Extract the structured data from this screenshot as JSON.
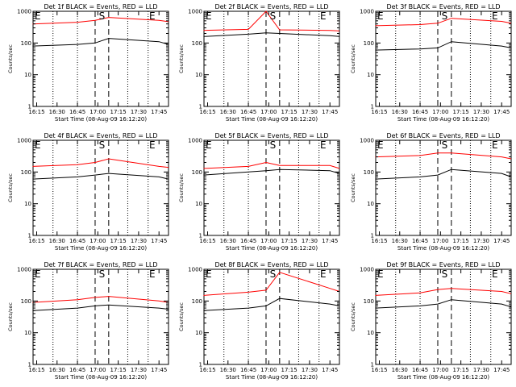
{
  "chart_data": {
    "type": "line",
    "grid": false,
    "legend": "none",
    "colors": {
      "events": "#000000",
      "lld": "#ff0000"
    },
    "xticks": [
      "16:15",
      "16:30",
      "16:45",
      "17:00",
      "17:15",
      "17:30",
      "17:45"
    ],
    "xrange": [
      "16:12:20",
      "17:52:00"
    ],
    "yscale": "log",
    "ylim": [
      1,
      1000
    ],
    "yticks": [
      "1",
      "10",
      "100",
      "1000"
    ],
    "markers": {
      "left": "E",
      "mid": "S",
      "right": "E"
    },
    "marker_times": {
      "left": "16:12:20",
      "mid": "17:03",
      "right": "17:40"
    },
    "dotted_times": [
      "16:27",
      "16:45",
      "17:22",
      "17:37"
    ],
    "dashed_times": [
      "16:58",
      "17:08"
    ],
    "panels": [
      {
        "title": "Det 1f BLACK = Events, RED = LLD",
        "ylabel": "Counts/sec",
        "xlabel": "Start Time (08-Aug-09 16:12:20)",
        "series": [
          {
            "key": "events",
            "x": [
              "16:12",
              "16:45",
              "16:58",
              "17:08",
              "17:45",
              "17:52"
            ],
            "y": [
              80,
              90,
              100,
              140,
              110,
              90
            ]
          },
          {
            "key": "lld",
            "x": [
              "16:12",
              "16:45",
              "16:58",
              "17:08",
              "17:45",
              "17:52"
            ],
            "y": [
              400,
              450,
              520,
              640,
              520,
              470
            ]
          }
        ]
      },
      {
        "title": "Det 2f BLACK = Events, RED = LLD",
        "ylabel": "Counts/sec",
        "xlabel": "Start Time (08-Aug-09 16:12:20)",
        "series": [
          {
            "key": "events",
            "x": [
              "16:12",
              "16:45",
              "16:58",
              "17:08",
              "17:45",
              "17:52"
            ],
            "y": [
              160,
              190,
              210,
              200,
              170,
              160
            ]
          },
          {
            "key": "lld",
            "x": [
              "16:12",
              "16:45",
              "16:58",
              "17:08",
              "17:45",
              "17:52"
            ],
            "y": [
              250,
              270,
              1000,
              260,
              250,
              240
            ]
          }
        ]
      },
      {
        "title": "Det 3f BLACK = Events, RED = LLD",
        "ylabel": "Counts/sec",
        "xlabel": "Start Time (08-Aug-09 16:12:20)",
        "series": [
          {
            "key": "events",
            "x": [
              "16:12",
              "16:45",
              "16:58",
              "17:08",
              "17:45",
              "17:52"
            ],
            "y": [
              60,
              65,
              70,
              110,
              80,
              70
            ]
          },
          {
            "key": "lld",
            "x": [
              "16:12",
              "16:45",
              "16:58",
              "17:08",
              "17:45",
              "17:52"
            ],
            "y": [
              350,
              380,
              420,
              600,
              480,
              420
            ]
          }
        ]
      },
      {
        "title": "Det 4f BLACK = Events, RED = LLD",
        "ylabel": "Counts/sec",
        "xlabel": "Start Time (08-Aug-09 16:12:20)",
        "series": [
          {
            "key": "events",
            "x": [
              "16:12",
              "16:45",
              "16:58",
              "17:08",
              "17:45",
              "17:52"
            ],
            "y": [
              60,
              70,
              80,
              90,
              70,
              60
            ]
          },
          {
            "key": "lld",
            "x": [
              "16:12",
              "16:45",
              "16:58",
              "17:08",
              "17:45",
              "17:52"
            ],
            "y": [
              150,
              170,
              200,
              260,
              150,
              140
            ]
          }
        ]
      },
      {
        "title": "Det 5f BLACK = Events, RED = LLD",
        "ylabel": "Counts/sec",
        "xlabel": "Start Time (08-Aug-09 16:12:20)",
        "series": [
          {
            "key": "events",
            "x": [
              "16:12",
              "16:45",
              "16:58",
              "17:08",
              "17:45",
              "17:52"
            ],
            "y": [
              80,
              100,
              110,
              120,
              110,
              90
            ]
          },
          {
            "key": "lld",
            "x": [
              "16:12",
              "16:45",
              "16:58",
              "17:08",
              "17:45",
              "17:52"
            ],
            "y": [
              130,
              150,
              200,
              160,
              160,
              130
            ]
          }
        ]
      },
      {
        "title": "Det 6f BLACK = Events, RED = LLD",
        "ylabel": "Counts/sec",
        "xlabel": "Start Time (08-Aug-09 16:12:20)",
        "series": [
          {
            "key": "events",
            "x": [
              "16:12",
              "16:45",
              "16:58",
              "17:08",
              "17:45",
              "17:52"
            ],
            "y": [
              60,
              70,
              80,
              120,
              90,
              70
            ]
          },
          {
            "key": "lld",
            "x": [
              "16:12",
              "16:45",
              "16:58",
              "17:08",
              "17:45",
              "17:52"
            ],
            "y": [
              300,
              330,
              400,
              400,
              300,
              260
            ]
          }
        ]
      },
      {
        "title": "Det 7f BLACK = Events, RED = LLD",
        "ylabel": "Counts/sec",
        "xlabel": "Start Time (08-Aug-09 16:12:20)",
        "series": [
          {
            "key": "events",
            "x": [
              "16:12",
              "16:45",
              "16:58",
              "17:08",
              "17:45",
              "17:52"
            ],
            "y": [
              50,
              60,
              70,
              75,
              60,
              55
            ]
          },
          {
            "key": "lld",
            "x": [
              "16:12",
              "16:45",
              "16:58",
              "17:08",
              "17:45",
              "17:52"
            ],
            "y": [
              90,
              110,
              130,
              140,
              100,
              90
            ]
          }
        ]
      },
      {
        "title": "Det 8f BLACK = Events, RED = LLD",
        "ylabel": "Counts/sec",
        "xlabel": "Start Time (08-Aug-09 16:12:20)",
        "series": [
          {
            "key": "events",
            "x": [
              "16:12",
              "16:45",
              "16:58",
              "17:08",
              "17:45",
              "17:52"
            ],
            "y": [
              50,
              60,
              70,
              120,
              80,
              70
            ]
          },
          {
            "key": "lld",
            "x": [
              "16:12",
              "16:45",
              "16:58",
              "17:08",
              "17:45",
              "17:52"
            ],
            "y": [
              150,
              190,
              220,
              800,
              250,
              200
            ]
          }
        ]
      },
      {
        "title": "Det 9f BLACK = Events, RED = LLD",
        "ylabel": "Counts/sec",
        "xlabel": "Start Time (08-Aug-09 16:12:20)",
        "series": [
          {
            "key": "events",
            "x": [
              "16:12",
              "16:45",
              "16:58",
              "17:08",
              "17:45",
              "17:52"
            ],
            "y": [
              60,
              70,
              80,
              110,
              80,
              65
            ]
          },
          {
            "key": "lld",
            "x": [
              "16:12",
              "16:45",
              "16:58",
              "17:08",
              "17:45",
              "17:52"
            ],
            "y": [
              150,
              180,
              230,
              250,
              200,
              170
            ]
          }
        ]
      }
    ]
  }
}
